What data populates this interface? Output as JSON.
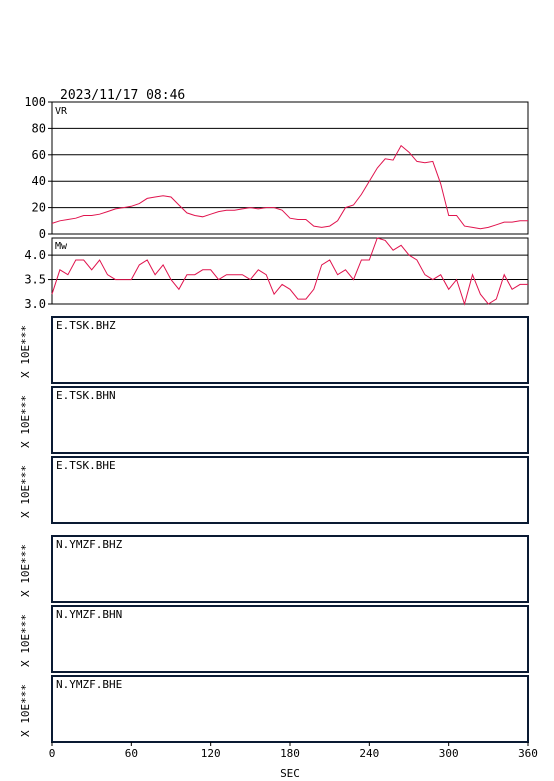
{
  "header": {
    "timestamp": "2023/11/17 08:46"
  },
  "colors": {
    "trace": "#e0144e",
    "axis": "#000000",
    "panel_border": "#0a1a33"
  },
  "chart_data": [
    {
      "type": "line",
      "label": "VR",
      "ylim": [
        0,
        100
      ],
      "yticks": [
        "0",
        "20",
        "40",
        "60",
        "80",
        "100"
      ],
      "grid": true,
      "x": [
        0,
        6,
        12,
        18,
        24,
        30,
        36,
        42,
        48,
        54,
        60,
        66,
        72,
        78,
        84,
        90,
        96,
        102,
        108,
        114,
        120,
        126,
        132,
        138,
        144,
        150,
        156,
        162,
        168,
        174,
        180,
        186,
        192,
        198,
        204,
        210,
        216,
        222,
        228,
        234,
        240,
        246,
        252,
        258,
        264,
        270,
        276,
        282,
        288,
        294,
        300,
        306,
        312,
        318,
        324,
        330,
        336,
        342,
        348,
        354,
        360
      ],
      "values": [
        8,
        10,
        11,
        12,
        14,
        14,
        15,
        17,
        19,
        20,
        21,
        23,
        27,
        28,
        29,
        28,
        22,
        16,
        14,
        13,
        15,
        17,
        18,
        18,
        19,
        20,
        19,
        20,
        20,
        18,
        12,
        11,
        11,
        6,
        5,
        6,
        10,
        20,
        22,
        30,
        40,
        50,
        57,
        56,
        67,
        62,
        55,
        54,
        55,
        38,
        14,
        14,
        6,
        5,
        4,
        5,
        7,
        9,
        9,
        10,
        10
      ]
    },
    {
      "type": "line",
      "label": "Mw",
      "ylim": [
        3.0,
        4.35
      ],
      "yticks": [
        "3.0",
        "3.5",
        "4.0"
      ],
      "grid": true,
      "x": [
        0,
        6,
        12,
        18,
        24,
        30,
        36,
        42,
        48,
        54,
        60,
        66,
        72,
        78,
        84,
        90,
        96,
        102,
        108,
        114,
        120,
        126,
        132,
        138,
        144,
        150,
        156,
        162,
        168,
        174,
        180,
        186,
        192,
        198,
        204,
        210,
        216,
        222,
        228,
        234,
        240,
        246,
        252,
        258,
        264,
        270,
        276,
        282,
        288,
        294,
        300,
        306,
        312,
        318,
        324,
        330,
        336,
        342,
        348,
        354,
        360
      ],
      "values": [
        3.2,
        3.7,
        3.6,
        3.9,
        3.9,
        3.7,
        3.9,
        3.6,
        3.5,
        3.5,
        3.5,
        3.8,
        3.9,
        3.6,
        3.8,
        3.5,
        3.3,
        3.6,
        3.6,
        3.7,
        3.7,
        3.5,
        3.6,
        3.6,
        3.6,
        3.5,
        3.7,
        3.6,
        3.2,
        3.4,
        3.3,
        3.1,
        3.1,
        3.3,
        3.8,
        3.9,
        3.6,
        3.7,
        3.5,
        3.9,
        3.9,
        4.35,
        4.3,
        4.1,
        4.2,
        4.0,
        3.9,
        3.6,
        3.5,
        3.6,
        3.3,
        3.5,
        3.0,
        3.6,
        3.2,
        3.0,
        3.1,
        3.6,
        3.3,
        3.4,
        3.4
      ]
    }
  ],
  "y_axis_unit": "X 10E***",
  "stations": [
    "E.TSK.BHZ",
    "E.TSK.BHN",
    "E.TSK.BHE",
    "N.YMZF.BHZ",
    "N.YMZF.BHN",
    "N.YMZF.BHE"
  ],
  "x_axis": {
    "label": "SEC",
    "min": 0,
    "max": 360,
    "ticks": [
      "0",
      "60",
      "120",
      "180",
      "240",
      "300",
      "360"
    ]
  }
}
